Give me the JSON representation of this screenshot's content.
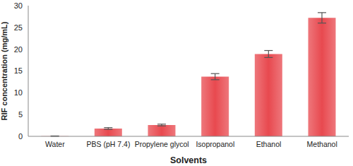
{
  "chart_data": {
    "type": "bar",
    "x_label": "Solvents",
    "y_label": "RIF concentration (mg/mL)",
    "categories": [
      "Water",
      "PBS (pH 7.4)",
      "Propylene glycol",
      "Isopropanol",
      "Ethanol",
      "Methanol"
    ],
    "values": [
      0.05,
      1.8,
      2.6,
      13.7,
      18.9,
      27.2
    ],
    "errors": [
      0.05,
      0.2,
      0.2,
      0.7,
      0.8,
      1.2
    ],
    "color": "#e8494f",
    "ylim": [
      0,
      30
    ],
    "yticks": [
      0,
      5,
      10,
      15,
      20,
      25,
      30
    ],
    "grid": false
  }
}
